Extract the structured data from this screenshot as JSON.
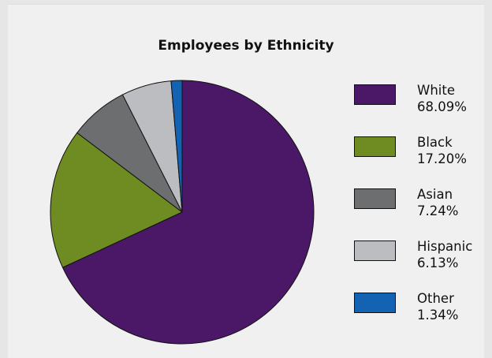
{
  "chart_data": {
    "type": "pie",
    "title": "Employees by Ethnicity",
    "legend_position": "right",
    "slices": [
      {
        "label": "White",
        "value": 68.09,
        "value_label": "68.09%",
        "color": "#4b1868"
      },
      {
        "label": "Black",
        "value": 17.2,
        "value_label": "17.20%",
        "color": "#6e8c22"
      },
      {
        "label": "Asian",
        "value": 7.24,
        "value_label": "7.24%",
        "color": "#6d6e70"
      },
      {
        "label": "Hispanic",
        "value": 6.13,
        "value_label": "6.13%",
        "color": "#bcbdc0"
      },
      {
        "label": "Other",
        "value": 1.34,
        "value_label": "1.34%",
        "color": "#1463b2"
      }
    ]
  }
}
